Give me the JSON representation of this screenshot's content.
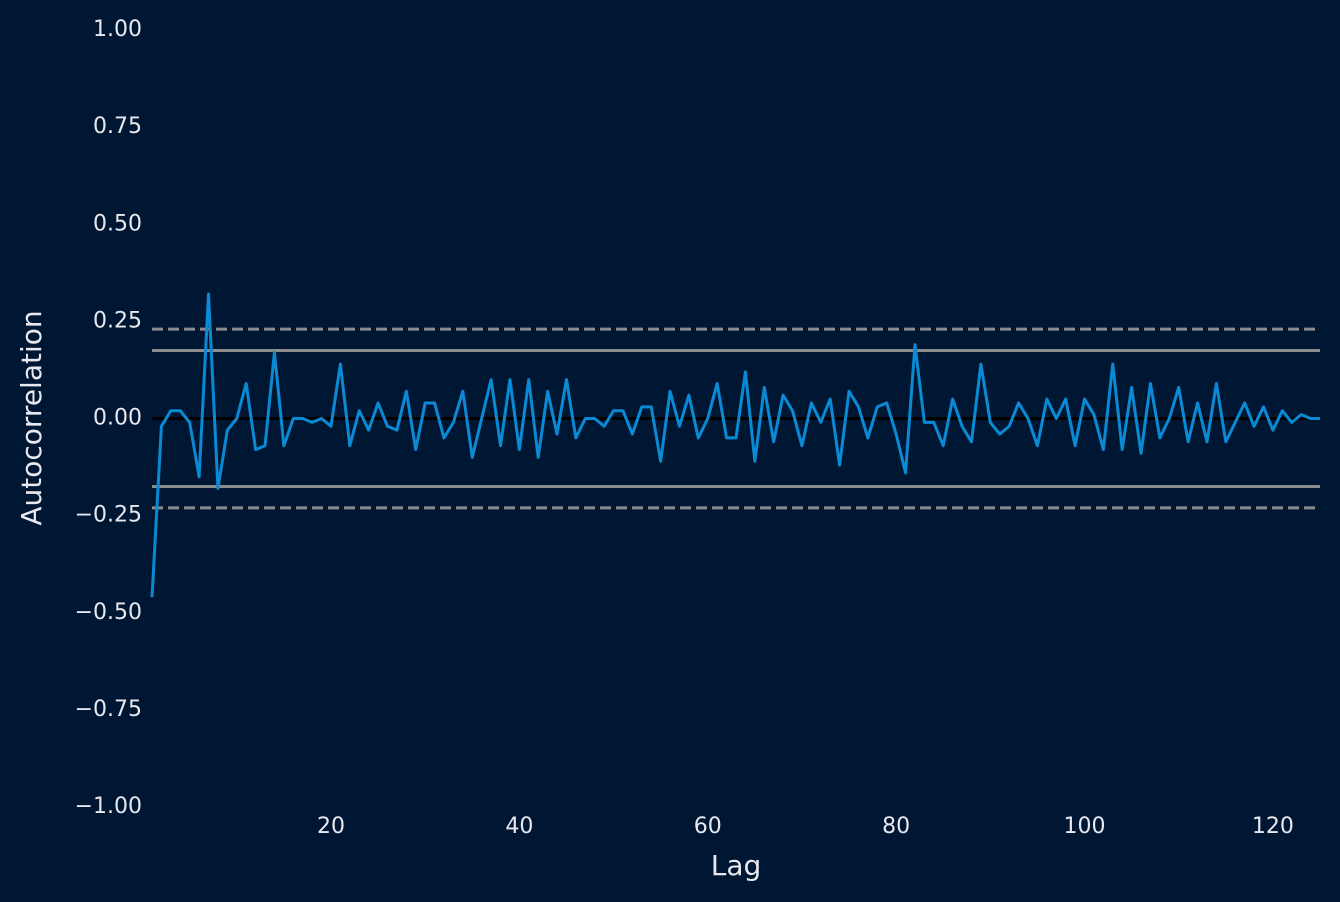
{
  "chart_data": {
    "type": "line",
    "x_label": "Lag",
    "y_label": "Autocorrelation",
    "x": [
      1,
      2,
      3,
      4,
      5,
      6,
      7,
      8,
      9,
      10,
      11,
      12,
      13,
      14,
      15,
      16,
      17,
      18,
      19,
      20,
      21,
      22,
      23,
      24,
      25,
      26,
      27,
      28,
      29,
      30,
      31,
      32,
      33,
      34,
      35,
      36,
      37,
      38,
      39,
      40,
      41,
      42,
      43,
      44,
      45,
      46,
      47,
      48,
      49,
      50,
      51,
      52,
      53,
      54,
      55,
      56,
      57,
      58,
      59,
      60,
      61,
      62,
      63,
      64,
      65,
      66,
      67,
      68,
      69,
      70,
      71,
      72,
      73,
      74,
      75,
      76,
      77,
      78,
      79,
      80,
      81,
      82,
      83,
      84,
      85,
      86,
      87,
      88,
      89,
      90,
      91,
      92,
      93,
      94,
      95,
      96,
      97,
      98,
      99,
      100,
      101,
      102,
      103,
      104,
      105,
      106,
      107,
      108,
      109,
      110,
      111,
      112,
      113,
      114,
      115,
      116,
      117,
      118,
      119,
      120,
      121,
      122,
      123,
      124,
      125
    ],
    "series": [
      {
        "color": "#0a8ad4",
        "values": [
          -0.46,
          -0.02,
          0.02,
          0.02,
          -0.01,
          -0.15,
          0.32,
          -0.18,
          -0.03,
          0.0,
          0.09,
          -0.08,
          -0.07,
          0.17,
          -0.07,
          0.0,
          0.0,
          -0.01,
          0.0,
          -0.02,
          0.14,
          -0.07,
          0.02,
          -0.03,
          0.04,
          -0.02,
          -0.03,
          0.07,
          -0.08,
          0.04,
          0.04,
          -0.05,
          -0.01,
          0.07,
          -0.1,
          0.0,
          0.1,
          -0.07,
          0.1,
          -0.08,
          0.1,
          -0.1,
          0.07,
          -0.04,
          0.1,
          -0.05,
          0.0,
          0.0,
          -0.02,
          0.02,
          0.02,
          -0.04,
          0.03,
          0.03,
          -0.11,
          0.07,
          -0.02,
          0.06,
          -0.05,
          0.0,
          0.09,
          -0.05,
          -0.05,
          0.12,
          -0.11,
          0.08,
          -0.06,
          0.06,
          0.02,
          -0.07,
          0.04,
          -0.01,
          0.05,
          -0.12,
          0.07,
          0.03,
          -0.05,
          0.03,
          0.04,
          -0.04,
          -0.14,
          0.19,
          -0.01,
          -0.01,
          -0.07,
          0.05,
          -0.02,
          -0.06,
          0.14,
          -0.01,
          -0.04,
          -0.02,
          0.04,
          0.0,
          -0.07,
          0.05,
          0.0,
          0.05,
          -0.07,
          0.05,
          0.01,
          -0.08,
          0.14,
          -0.08,
          0.08,
          -0.09,
          0.09,
          -0.05,
          0.0,
          0.08,
          -0.06,
          0.04,
          -0.06,
          0.09,
          -0.06,
          -0.01,
          0.04,
          -0.02,
          0.03,
          -0.03,
          0.02,
          -0.01,
          0.01,
          0.0,
          0.0
        ]
      }
    ],
    "reference_lines": [
      {
        "value": 0.23,
        "style": "dashed",
        "color": "#8c8c8c"
      },
      {
        "value": 0.175,
        "style": "solid",
        "color": "#8c8c8c"
      },
      {
        "value": 0,
        "style": "solid",
        "color": "#000000"
      },
      {
        "value": -0.175,
        "style": "solid",
        "color": "#8c8c8c"
      },
      {
        "value": -0.23,
        "style": "dashed",
        "color": "#8c8c8c"
      }
    ],
    "xlim": [
      1,
      125
    ],
    "ylim": [
      -1,
      1
    ],
    "xticks": [
      20,
      40,
      60,
      80,
      100,
      120
    ],
    "yticks": [
      {
        "value": -1,
        "label": "−1.00"
      },
      {
        "value": -0.75,
        "label": "−0.75"
      },
      {
        "value": -0.5,
        "label": "−0.50"
      },
      {
        "value": -0.25,
        "label": "−0.25"
      },
      {
        "value": 0,
        "label": "0.00"
      },
      {
        "value": 0.25,
        "label": "0.25"
      },
      {
        "value": 0.5,
        "label": "0.50"
      },
      {
        "value": 0.75,
        "label": "0.75"
      },
      {
        "value": 1,
        "label": "1.00"
      }
    ],
    "grid": false
  }
}
